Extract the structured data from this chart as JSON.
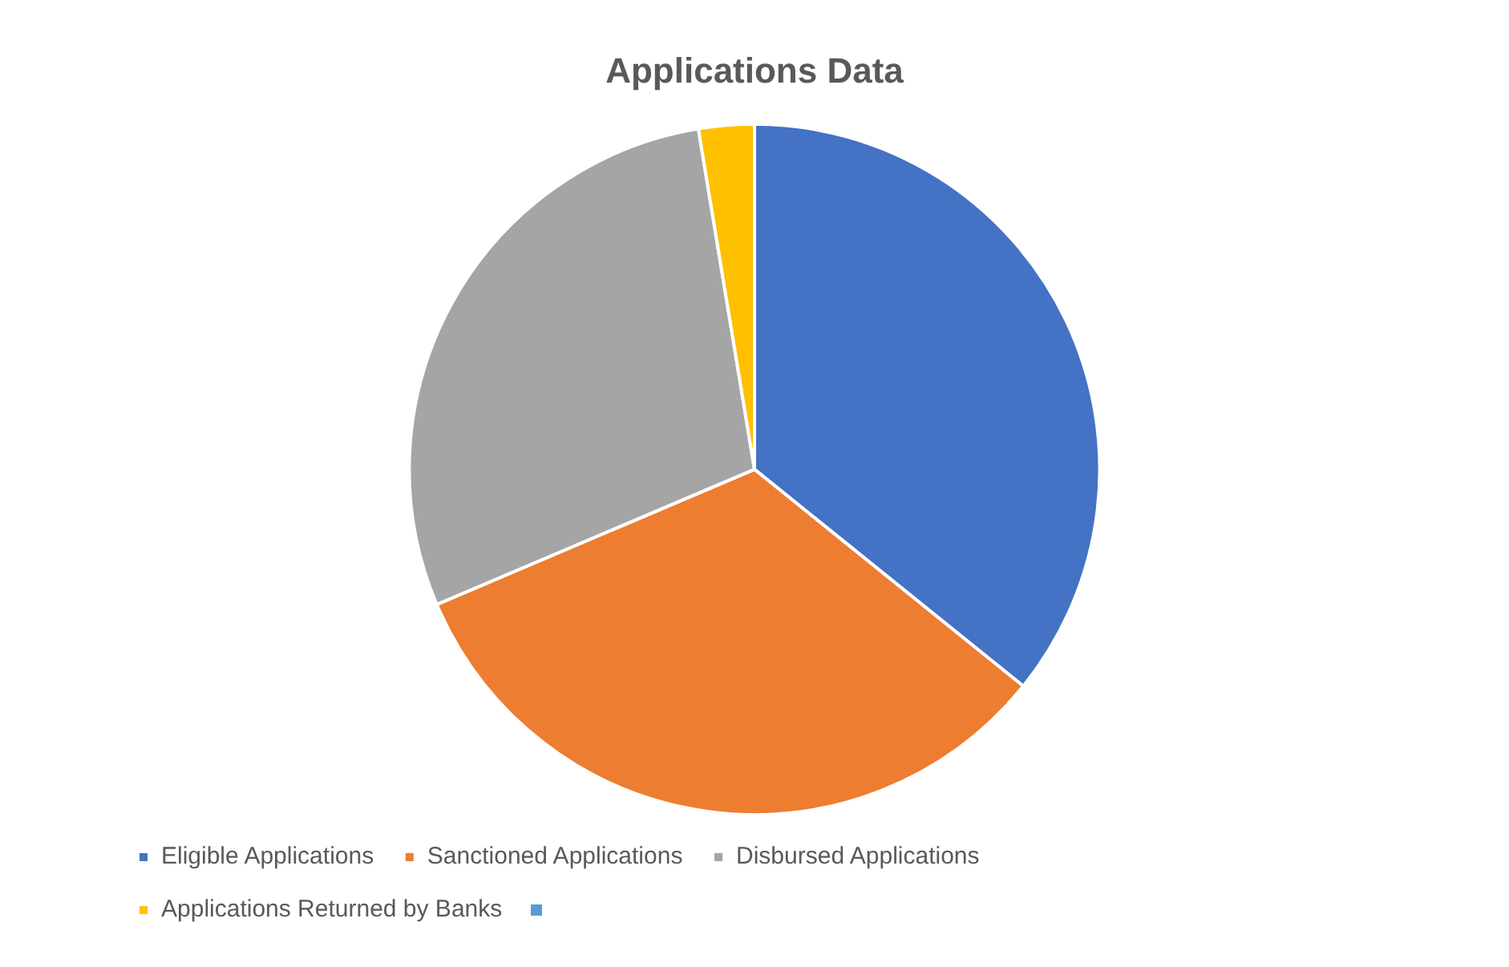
{
  "chart_data": {
    "type": "pie",
    "title": "Applications Data",
    "categories": [
      "Eligible Applications",
      "Sanctioned Applications",
      "Disbursed Applications",
      "Applications Returned by Banks",
      null
    ],
    "values": [
      35.8,
      32.8,
      28.8,
      2.6,
      0
    ],
    "colors": [
      "#4472c4",
      "#ed7d31",
      "#a5a5a5",
      "#ffc000",
      "#5b9bd5"
    ],
    "legend": "bottom"
  }
}
